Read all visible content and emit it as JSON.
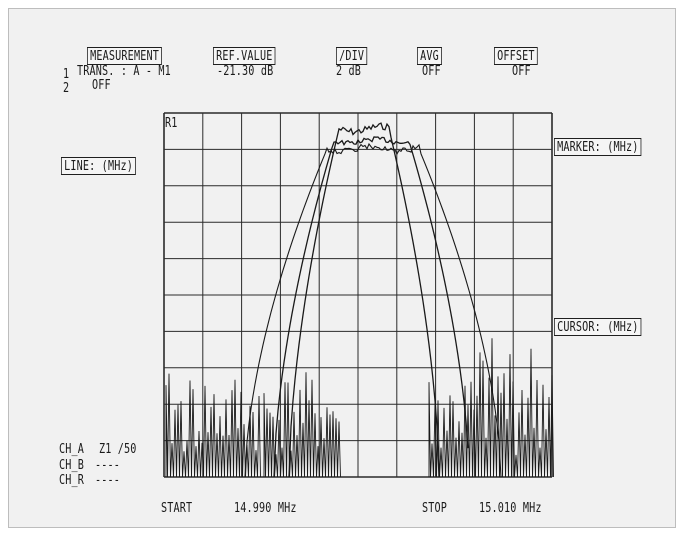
{
  "header": {
    "measurement_label": "MEASUREMENT",
    "ref_value_label": "REF.VALUE",
    "div_label": "/DIV",
    "avg_label": "AVG",
    "offset_label": "OFFSET",
    "row1_index": "1",
    "row1_trace": "TRANS. : A - M1",
    "row1_ref": "-21.30 dB",
    "row1_div": "2 dB",
    "row1_avg": "OFF",
    "row1_offset": "OFF",
    "row2_index": "2",
    "row2_trace": "OFF"
  },
  "left_panel": {
    "line_label": "LINE: (MHz)",
    "ch_a_label": "CH_A",
    "ch_a_value": "Z1 /50",
    "ch_b_label": "CH_B",
    "ch_b_value": "----",
    "ch_r_label": "CH_R",
    "ch_r_value": "----"
  },
  "right_panel": {
    "marker_label": "MARKER: (MHz)",
    "cursor_label": "CURSOR: (MHz)"
  },
  "plot": {
    "ref_marker": "R1",
    "start_label": "START",
    "start_value": "14.990 MHz",
    "stop_label": "STOP",
    "stop_value": "15.010 MHz",
    "grid_divisions_x": 10,
    "grid_divisions_y": 10
  },
  "colors": {
    "background": "#f1f1f1",
    "ink": "#1a1a1a"
  }
}
